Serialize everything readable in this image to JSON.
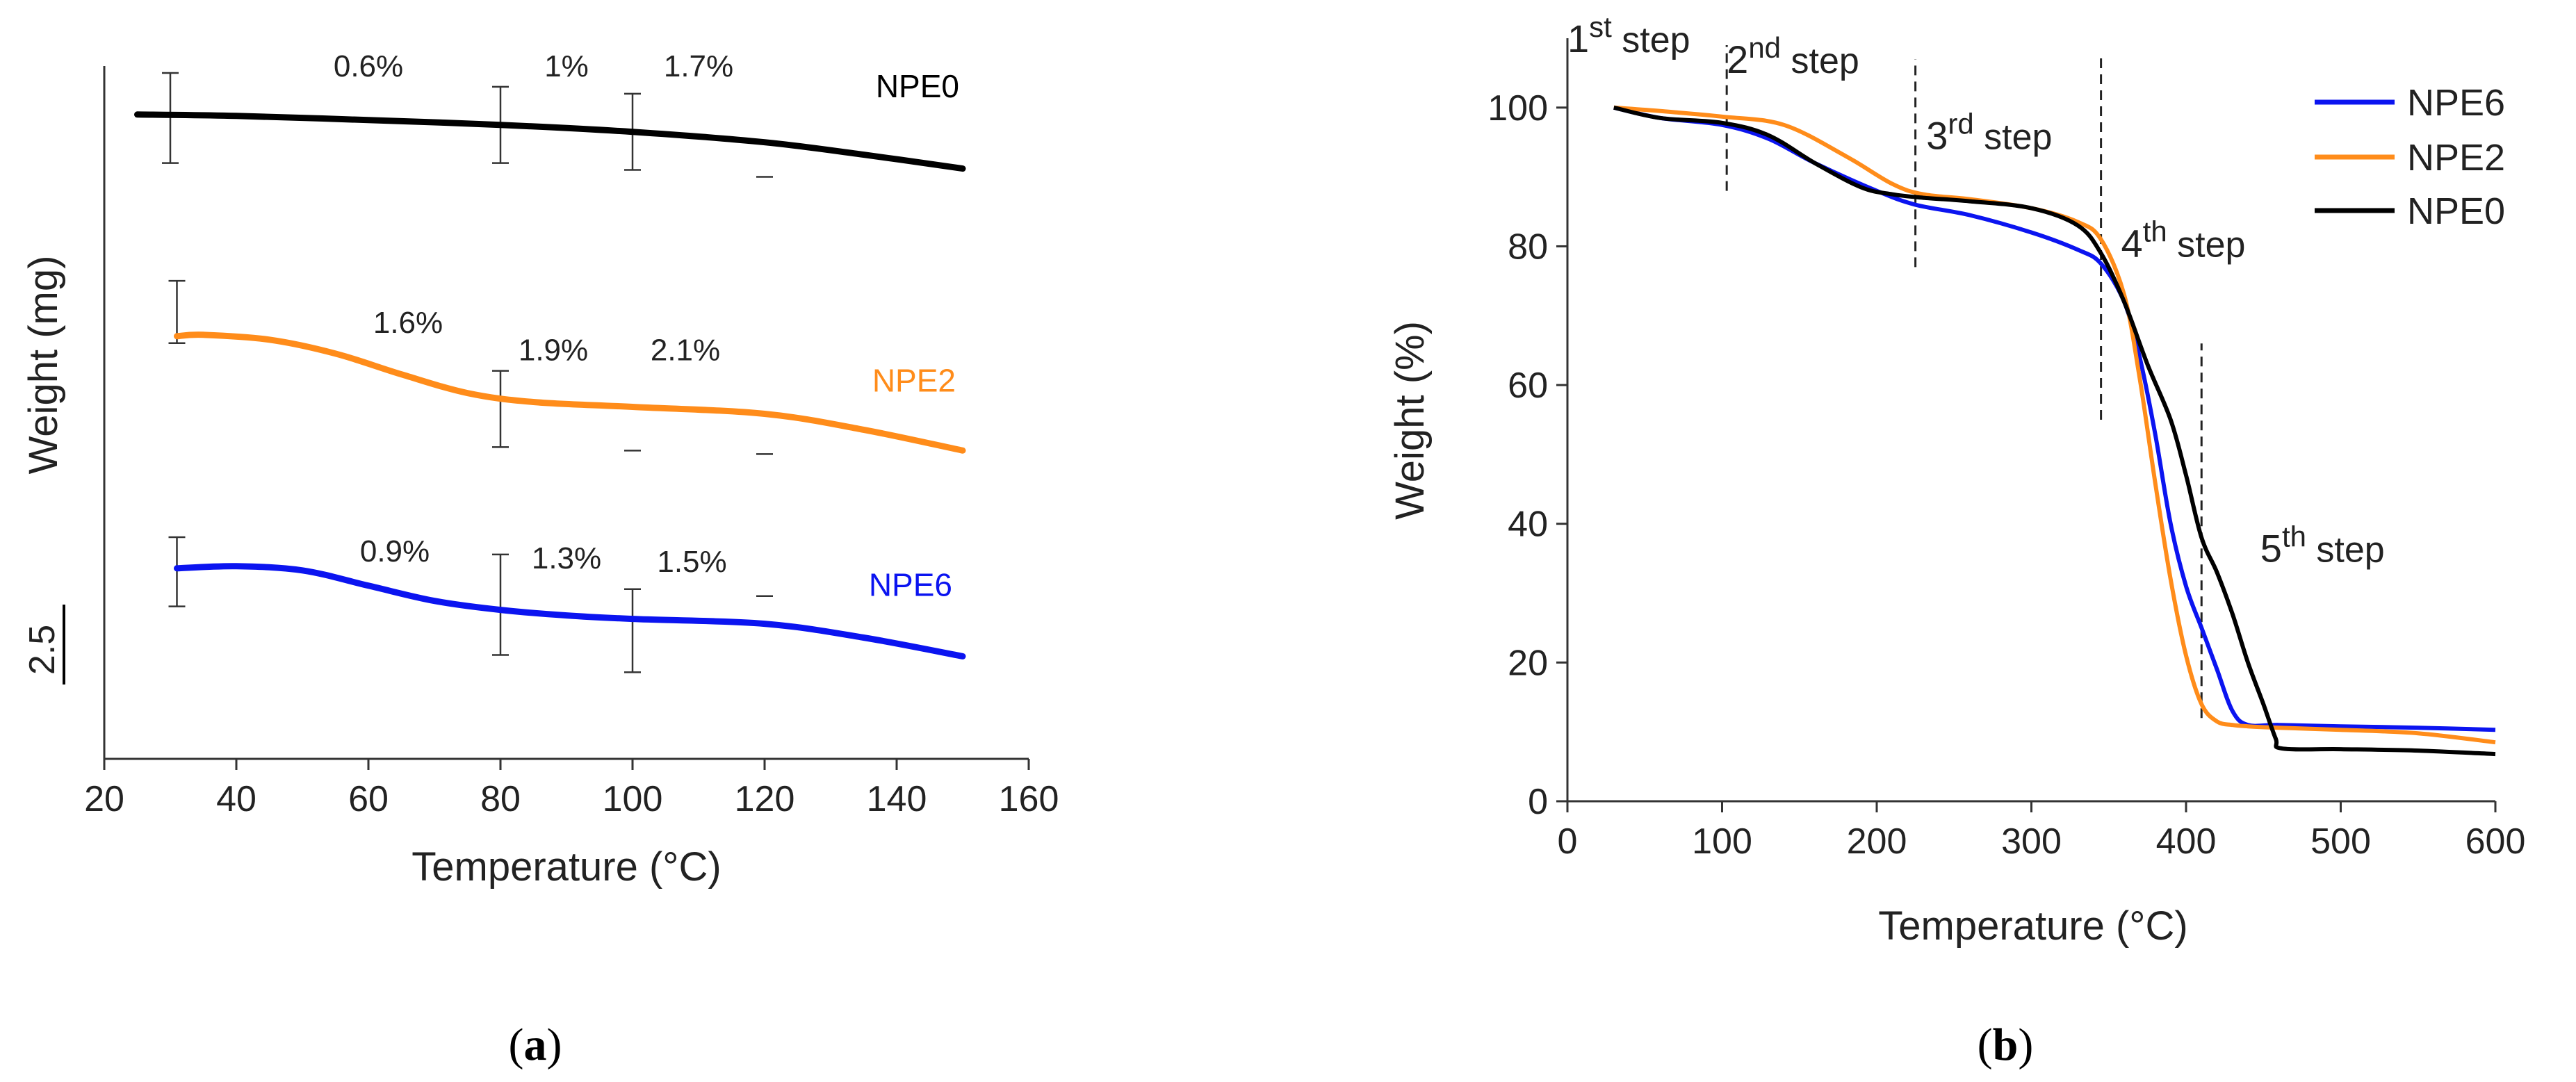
{
  "colors": {
    "NPE0": "#000000",
    "NPE2": "#ff8c1a",
    "NPE6": "#0b14f0",
    "axis": "#333333"
  },
  "chart_data": [
    {
      "panel": "(a)",
      "caption": {
        "open": "(",
        "letter": "a",
        "close": ")"
      },
      "type": "line",
      "title": "",
      "xlabel": "Temperature (°C)",
      "ylabel": "Weight (mg)",
      "xlim": [
        20,
        160
      ],
      "xticks": [
        "20",
        "40",
        "60",
        "80",
        "100",
        "120",
        "140",
        "160"
      ],
      "scale_bar_label": "2.5",
      "scale_bar_value_mg": 2.5,
      "ylim": [
        0,
        10
      ],
      "series": [
        {
          "name": "NPE0",
          "color_key": "NPE0",
          "label": "NPE0",
          "x": [
            25,
            40,
            60,
            80,
            100,
            120,
            135,
            150
          ],
          "y": [
            9.3,
            9.28,
            9.22,
            9.15,
            9.05,
            8.9,
            8.72,
            8.52
          ]
        },
        {
          "name": "NPE2",
          "color_key": "NPE2",
          "label": "NPE2",
          "x": [
            31,
            35,
            45,
            55,
            65,
            75,
            85,
            100,
            120,
            135,
            150
          ],
          "y": [
            6.1,
            6.12,
            6.05,
            5.85,
            5.55,
            5.28,
            5.15,
            5.08,
            4.98,
            4.75,
            4.45
          ]
        },
        {
          "name": "NPE6",
          "color_key": "NPE6",
          "label": "NPE6",
          "x": [
            31,
            40,
            50,
            60,
            70,
            80,
            90,
            100,
            120,
            135,
            150
          ],
          "y": [
            2.75,
            2.78,
            2.72,
            2.5,
            2.28,
            2.15,
            2.07,
            2.02,
            1.95,
            1.75,
            1.48
          ]
        }
      ],
      "annotations": [
        {
          "text": "0.6%",
          "x": 60,
          "y": 9.85
        },
        {
          "text": "1%",
          "x": 90,
          "y": 9.85
        },
        {
          "text": "1.7%",
          "x": 110,
          "y": 9.85
        },
        {
          "text": "1.6%",
          "x": 66,
          "y": 6.15
        },
        {
          "text": "1.9%",
          "x": 88,
          "y": 5.75
        },
        {
          "text": "2.1%",
          "x": 108,
          "y": 5.75
        },
        {
          "text": "0.9%",
          "x": 64,
          "y": 2.85
        },
        {
          "text": "1.3%",
          "x": 90,
          "y": 2.75
        },
        {
          "text": "1.5%",
          "x": 109,
          "y": 2.7
        }
      ],
      "error_bars": [
        {
          "x": 30,
          "ylo": 8.6,
          "yhi": 9.9
        },
        {
          "x": 80,
          "ylo": 8.6,
          "yhi": 9.7
        },
        {
          "x": 100,
          "ylo": 8.5,
          "yhi": 9.6
        },
        {
          "x": 120,
          "ylo": 8.4,
          "yhi": 8.4
        },
        {
          "x": 31,
          "ylo": 6.0,
          "yhi": 6.9
        },
        {
          "x": 80,
          "ylo": 4.5,
          "yhi": 5.6
        },
        {
          "x": 100,
          "ylo": 4.45,
          "yhi": 4.45
        },
        {
          "x": 120,
          "ylo": 4.4,
          "yhi": 4.4
        },
        {
          "x": 31,
          "ylo": 2.2,
          "yhi": 3.2
        },
        {
          "x": 80,
          "ylo": 1.5,
          "yhi": 2.95
        },
        {
          "x": 100,
          "ylo": 1.25,
          "yhi": 2.45
        },
        {
          "x": 120,
          "ylo": 2.35,
          "yhi": 2.35
        }
      ]
    },
    {
      "panel": "(b)",
      "caption": {
        "open": "(",
        "letter": "b",
        "close": ")"
      },
      "type": "line",
      "title": "",
      "xlabel": "Temperature (°C)",
      "ylabel": "Weight (%)",
      "xlim": [
        0,
        600
      ],
      "ylim": [
        0,
        110
      ],
      "xticks": [
        "0",
        "100",
        "200",
        "300",
        "400",
        "500",
        "600"
      ],
      "yticks": [
        "0",
        "20",
        "40",
        "60",
        "80",
        "100"
      ],
      "legend": {
        "position": "top-right",
        "entries": [
          "NPE6",
          "NPE2",
          "NPE0"
        ]
      },
      "series": [
        {
          "name": "NPE6",
          "color_key": "NPE6",
          "x": [
            30,
            60,
            100,
            130,
            160,
            200,
            225,
            260,
            300,
            330,
            345,
            360,
            370,
            380,
            390,
            400,
            410,
            420,
            430,
            440,
            460,
            500,
            550,
            600
          ],
          "y": [
            100,
            98.5,
            97.5,
            95.5,
            92,
            88,
            86,
            84.5,
            82,
            79.5,
            77.5,
            72,
            64,
            53,
            40,
            31,
            25,
            19,
            13,
            11,
            11,
            10.8,
            10.6,
            10.3
          ]
        },
        {
          "name": "NPE2",
          "color_key": "NPE2",
          "x": [
            30,
            60,
            100,
            140,
            180,
            210,
            230,
            260,
            300,
            330,
            345,
            360,
            370,
            380,
            390,
            400,
            410,
            420,
            430,
            440,
            460,
            500,
            550,
            600
          ],
          "y": [
            100,
            99.5,
            98.7,
            97.5,
            93,
            89,
            87.5,
            86.8,
            85.5,
            83.5,
            81,
            73,
            61,
            46,
            32,
            21,
            14,
            11.5,
            11,
            10.8,
            10.6,
            10.3,
            9.8,
            8.5
          ]
        },
        {
          "name": "NPE0",
          "color_key": "NPE0",
          "x": [
            30,
            60,
            100,
            130,
            160,
            190,
            210,
            230,
            260,
            300,
            330,
            345,
            360,
            375,
            390,
            400,
            410,
            420,
            430,
            440,
            450,
            458,
            462,
            500,
            550,
            600
          ],
          "y": [
            100,
            98.5,
            97.8,
            96,
            92,
            88.5,
            87.5,
            87,
            86.5,
            85.5,
            83,
            79,
            72,
            63,
            55,
            47,
            38,
            33,
            27,
            20,
            14,
            9,
            7.6,
            7.5,
            7.3,
            6.8
          ]
        }
      ],
      "step_markers": [
        {
          "x": 103,
          "ylo": 88,
          "yhi": 109
        },
        {
          "x": 225,
          "ylo": 77,
          "yhi": 107
        },
        {
          "x": 345,
          "ylo": 55,
          "yhi": 108
        },
        {
          "x": 410,
          "ylo": 12,
          "yhi": 66
        }
      ],
      "step_labels": [
        {
          "pre": "1",
          "sup": "st",
          "post": " step",
          "x": 0,
          "y": 108
        },
        {
          "pre": "2",
          "sup": "nd",
          "post": " step",
          "x": 103,
          "y": 105
        },
        {
          "pre": "3",
          "sup": "rd",
          "post": " step",
          "x": 232,
          "y": 94
        },
        {
          "pre": "4",
          "sup": "th",
          "post": " step",
          "x": 358,
          "y": 78.5
        },
        {
          "pre": "5",
          "sup": "th",
          "post": " step",
          "x": 448,
          "y": 34.5
        }
      ]
    }
  ]
}
